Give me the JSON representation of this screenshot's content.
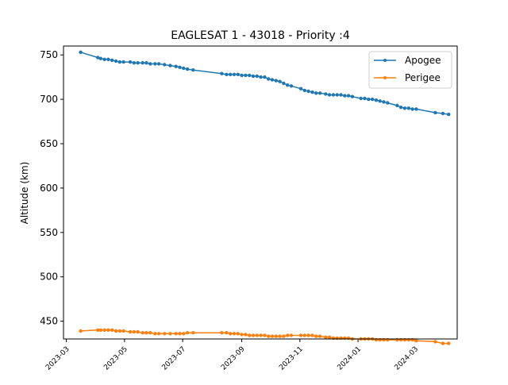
{
  "chart_data": {
    "type": "line",
    "title": "EAGLESAT 1 - 43018 - Priority :4",
    "xlabel": "",
    "ylabel": "Altitude (km)",
    "ylim": [
      430,
      760
    ],
    "xlim": [
      "2023-02-26",
      "2024-04-14"
    ],
    "y_ticks": [
      450,
      500,
      550,
      600,
      650,
      700,
      750
    ],
    "x_ticks": [
      "2023-03",
      "2023-05",
      "2023-07",
      "2023-09",
      "2023-11",
      "2024-01",
      "2024-03"
    ],
    "grid": false,
    "legend_position": "top-right",
    "series": [
      {
        "name": "Apogee",
        "color": "#1f77b4",
        "points": [
          [
            "2023-03-16",
            753
          ],
          [
            "2023-04-03",
            747
          ],
          [
            "2023-04-06",
            746
          ],
          [
            "2023-04-10",
            745
          ],
          [
            "2023-04-14",
            745
          ],
          [
            "2023-04-18",
            744
          ],
          [
            "2023-04-22",
            743
          ],
          [
            "2023-04-26",
            742
          ],
          [
            "2023-04-30",
            742
          ],
          [
            "2023-05-07",
            742
          ],
          [
            "2023-05-11",
            741
          ],
          [
            "2023-05-15",
            741
          ],
          [
            "2023-05-20",
            741
          ],
          [
            "2023-05-24",
            741
          ],
          [
            "2023-05-28",
            740
          ],
          [
            "2023-06-02",
            740
          ],
          [
            "2023-06-06",
            740
          ],
          [
            "2023-06-12",
            739
          ],
          [
            "2023-06-18",
            738
          ],
          [
            "2023-06-24",
            737
          ],
          [
            "2023-06-28",
            736
          ],
          [
            "2023-07-02",
            735
          ],
          [
            "2023-07-06",
            734
          ],
          [
            "2023-07-12",
            733
          ],
          [
            "2023-08-11",
            729
          ],
          [
            "2023-08-16",
            728
          ],
          [
            "2023-08-20",
            728
          ],
          [
            "2023-08-24",
            728
          ],
          [
            "2023-08-28",
            728
          ],
          [
            "2023-09-01",
            727
          ],
          [
            "2023-09-05",
            727
          ],
          [
            "2023-09-09",
            727
          ],
          [
            "2023-09-13",
            726
          ],
          [
            "2023-09-17",
            726
          ],
          [
            "2023-09-21",
            725
          ],
          [
            "2023-09-25",
            725
          ],
          [
            "2023-09-29",
            723
          ],
          [
            "2023-10-03",
            722
          ],
          [
            "2023-10-07",
            721
          ],
          [
            "2023-10-11",
            720
          ],
          [
            "2023-10-15",
            718
          ],
          [
            "2023-10-19",
            716
          ],
          [
            "2023-10-23",
            715
          ],
          [
            "2023-11-02",
            712
          ],
          [
            "2023-11-06",
            710
          ],
          [
            "2023-11-10",
            709
          ],
          [
            "2023-11-14",
            708
          ],
          [
            "2023-11-18",
            707
          ],
          [
            "2023-11-22",
            707
          ],
          [
            "2023-11-28",
            706
          ],
          [
            "2023-12-02",
            705
          ],
          [
            "2023-12-06",
            705
          ],
          [
            "2023-12-10",
            705
          ],
          [
            "2023-12-14",
            705
          ],
          [
            "2023-12-18",
            704
          ],
          [
            "2023-12-22",
            704
          ],
          [
            "2023-12-26",
            703
          ],
          [
            "2024-01-04",
            701
          ],
          [
            "2024-01-08",
            701
          ],
          [
            "2024-01-12",
            700
          ],
          [
            "2024-01-16",
            700
          ],
          [
            "2024-01-20",
            699
          ],
          [
            "2024-01-24",
            698
          ],
          [
            "2024-01-28",
            697
          ],
          [
            "2024-02-01",
            696
          ],
          [
            "2024-02-11",
            693
          ],
          [
            "2024-02-15",
            691
          ],
          [
            "2024-02-19",
            690
          ],
          [
            "2024-02-23",
            690
          ],
          [
            "2024-02-27",
            689
          ],
          [
            "2024-03-02",
            689
          ],
          [
            "2024-03-22",
            685
          ],
          [
            "2024-03-30",
            684
          ],
          [
            "2024-04-05",
            683
          ]
        ]
      },
      {
        "name": "Perigee",
        "color": "#ff7f0e",
        "points": [
          [
            "2023-03-16",
            439
          ],
          [
            "2023-04-03",
            440
          ],
          [
            "2023-04-06",
            440
          ],
          [
            "2023-04-10",
            440
          ],
          [
            "2023-04-14",
            440
          ],
          [
            "2023-04-18",
            440
          ],
          [
            "2023-04-22",
            439
          ],
          [
            "2023-04-26",
            439
          ],
          [
            "2023-04-30",
            439
          ],
          [
            "2023-05-07",
            438
          ],
          [
            "2023-05-11",
            438
          ],
          [
            "2023-05-15",
            438
          ],
          [
            "2023-05-20",
            437
          ],
          [
            "2023-05-24",
            437
          ],
          [
            "2023-05-28",
            437
          ],
          [
            "2023-06-02",
            436
          ],
          [
            "2023-06-06",
            436
          ],
          [
            "2023-06-12",
            436
          ],
          [
            "2023-06-18",
            436
          ],
          [
            "2023-06-24",
            436
          ],
          [
            "2023-06-28",
            436
          ],
          [
            "2023-07-02",
            436
          ],
          [
            "2023-07-06",
            437
          ],
          [
            "2023-07-12",
            437
          ],
          [
            "2023-08-11",
            437
          ],
          [
            "2023-08-16",
            437
          ],
          [
            "2023-08-20",
            436
          ],
          [
            "2023-08-24",
            436
          ],
          [
            "2023-08-28",
            436
          ],
          [
            "2023-09-01",
            435
          ],
          [
            "2023-09-05",
            435
          ],
          [
            "2023-09-09",
            434
          ],
          [
            "2023-09-13",
            434
          ],
          [
            "2023-09-17",
            434
          ],
          [
            "2023-09-21",
            434
          ],
          [
            "2023-09-25",
            434
          ],
          [
            "2023-09-29",
            433
          ],
          [
            "2023-10-03",
            433
          ],
          [
            "2023-10-07",
            433
          ],
          [
            "2023-10-11",
            433
          ],
          [
            "2023-10-15",
            433
          ],
          [
            "2023-10-19",
            434
          ],
          [
            "2023-10-23",
            434
          ],
          [
            "2023-11-02",
            434
          ],
          [
            "2023-11-06",
            434
          ],
          [
            "2023-11-10",
            434
          ],
          [
            "2023-11-14",
            434
          ],
          [
            "2023-11-18",
            433
          ],
          [
            "2023-11-22",
            433
          ],
          [
            "2023-11-28",
            432
          ],
          [
            "2023-12-02",
            432
          ],
          [
            "2023-12-06",
            431
          ],
          [
            "2023-12-10",
            431
          ],
          [
            "2023-12-14",
            431
          ],
          [
            "2023-12-18",
            431
          ],
          [
            "2023-12-22",
            431
          ],
          [
            "2023-12-26",
            430
          ],
          [
            "2024-01-04",
            430
          ],
          [
            "2024-01-08",
            430
          ],
          [
            "2024-01-12",
            430
          ],
          [
            "2024-01-16",
            430
          ],
          [
            "2024-01-20",
            429
          ],
          [
            "2024-01-24",
            429
          ],
          [
            "2024-01-28",
            429
          ],
          [
            "2024-02-01",
            429
          ],
          [
            "2024-02-11",
            429
          ],
          [
            "2024-02-15",
            429
          ],
          [
            "2024-02-19",
            429
          ],
          [
            "2024-02-23",
            429
          ],
          [
            "2024-02-27",
            429
          ],
          [
            "2024-03-02",
            428
          ],
          [
            "2024-03-22",
            427
          ],
          [
            "2024-03-30",
            425
          ],
          [
            "2024-04-05",
            425
          ]
        ]
      }
    ]
  }
}
